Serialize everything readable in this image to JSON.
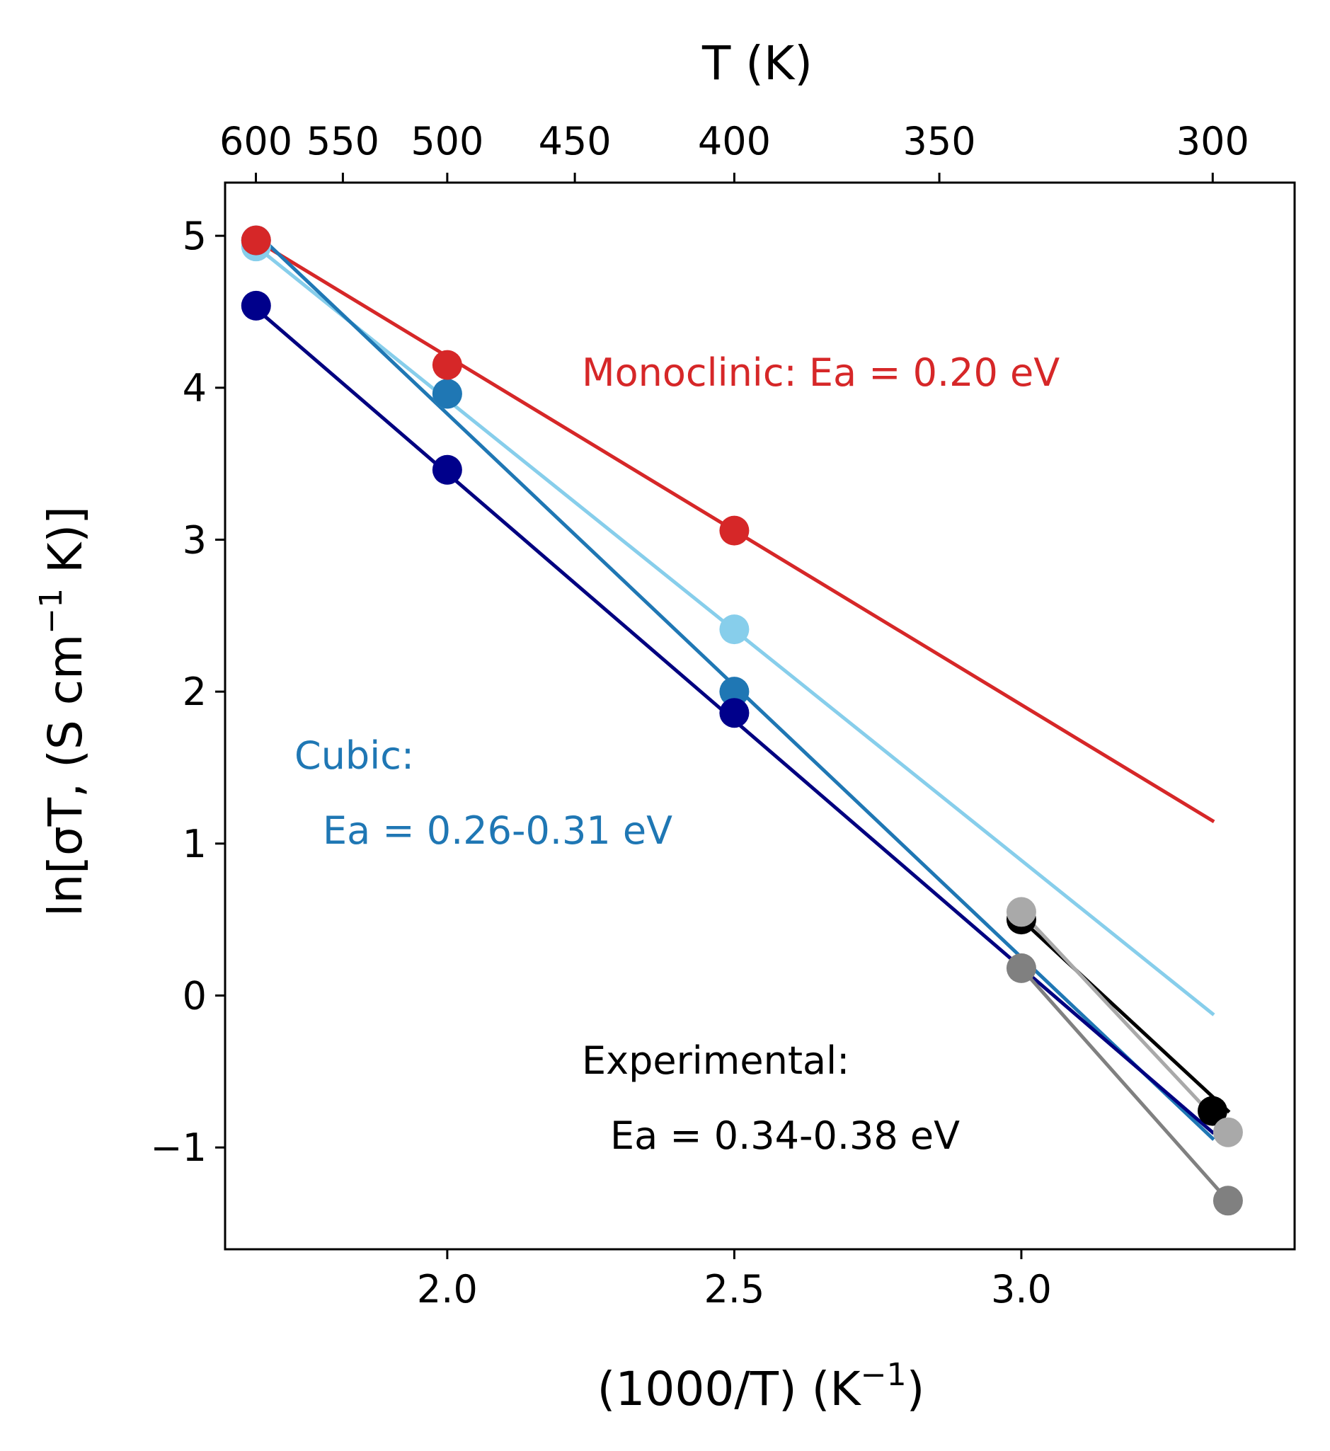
{
  "chart_data": {
    "type": "line",
    "xlabel": "(1000/T) (K",
    "xlabel_sup": "−1",
    "xlabel_end": ")",
    "ylabel": "ln[σT, (S cm",
    "ylabel_sup": "−1",
    "ylabel_end": " K)]",
    "top_label": "T (K)",
    "xlim": [
      1.613,
      3.476
    ],
    "ylim": [
      -1.67,
      5.35
    ],
    "x_ticks": [
      2.0,
      2.5,
      3.0
    ],
    "x_tick_labels": [
      "2.0",
      "2.5",
      "3.0"
    ],
    "y_ticks": [
      -1,
      0,
      1,
      2,
      3,
      4,
      5
    ],
    "y_tick_labels": [
      "−1",
      "0",
      "1",
      "2",
      "3",
      "4",
      "5"
    ],
    "top_ticks": [
      600,
      550,
      500,
      450,
      400,
      350,
      300
    ],
    "top_tick_labels": [
      "600",
      "550",
      "500",
      "450",
      "400",
      "350",
      "300"
    ],
    "grid": false,
    "fit_lines": [
      {
        "color": "#d62728",
        "x": [
          1.667,
          3.333
        ],
        "y": [
          4.97,
          1.15
        ]
      },
      {
        "color": "#87ceeb",
        "x": [
          1.667,
          3.333
        ],
        "y": [
          4.93,
          -0.12
        ]
      },
      {
        "color": "#1f77b4",
        "x": [
          1.667,
          3.333
        ],
        "y": [
          5.02,
          -0.94
        ]
      },
      {
        "color": "#000080",
        "x": [
          1.667,
          3.333
        ],
        "y": [
          4.52,
          -0.9
        ]
      },
      {
        "color": "#000000",
        "x": [
          3.0,
          3.36
        ],
        "y": [
          0.5,
          -0.76
        ]
      },
      {
        "color": "#a9a9a9",
        "x": [
          3.0,
          3.36
        ],
        "y": [
          0.55,
          -0.9
        ]
      },
      {
        "color": "#808080",
        "x": [
          3.0,
          3.36
        ],
        "y": [
          0.18,
          -1.35
        ]
      }
    ],
    "series": [
      {
        "color": "#87ceeb",
        "x": [
          1.667,
          2.0,
          2.5
        ],
        "y": [
          4.93,
          3.96,
          2.41
        ]
      },
      {
        "color": "#1f77b4",
        "x": [
          1.667,
          2.0,
          2.5
        ],
        "y": [
          4.97,
          3.96,
          2.0
        ]
      },
      {
        "color": "#00008b",
        "x": [
          1.667,
          2.0,
          2.5
        ],
        "y": [
          4.54,
          3.46,
          1.86
        ]
      },
      {
        "color": "#d62728",
        "x": [
          1.667,
          2.0,
          2.5
        ],
        "y": [
          4.97,
          4.15,
          3.06
        ]
      },
      {
        "color": "#000000",
        "x": [
          3.0,
          3.333
        ],
        "y": [
          0.5,
          -0.76
        ]
      },
      {
        "color": "#a9a9a9",
        "x": [
          3.0,
          3.36
        ],
        "y": [
          0.55,
          -0.9
        ]
      },
      {
        "color": "#808080",
        "x": [
          3.0,
          3.36
        ],
        "y": [
          0.18,
          -1.35
        ]
      }
    ],
    "annotations": [
      {
        "text": "Monoclinic: Ea = 0.20 eV",
        "color": "#d62728"
      },
      {
        "text": "Cubic:",
        "color": "#1f77b4"
      },
      {
        "text": "Ea = 0.26-0.31 eV",
        "color": "#1f77b4"
      },
      {
        "text": "Experimental:",
        "color": "#000000"
      },
      {
        "text": "Ea = 0.34-0.38 eV",
        "color": "#000000"
      }
    ]
  }
}
